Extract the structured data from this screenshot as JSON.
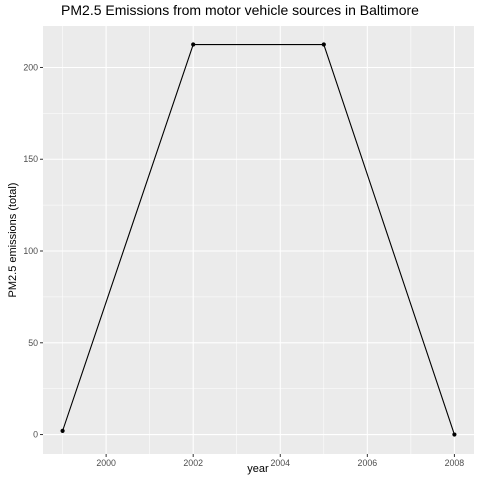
{
  "chart_data": {
    "type": "line",
    "title": "PM2.5 Emissions from motor vehicle sources in Baltimore",
    "xlabel": "year",
    "ylabel": "PM2.5 emissions (total)",
    "x": [
      1999,
      2002,
      2005,
      2008
    ],
    "series": [
      {
        "name": "total",
        "values": [
          2,
          212.5,
          212.5,
          0
        ],
        "color": "#000000"
      }
    ],
    "xlim": [
      1998.55,
      2008.45
    ],
    "ylim": [
      -10.6,
      222.6
    ],
    "xticks": [
      2000,
      2002,
      2004,
      2006,
      2008
    ],
    "xtick_labels": [
      "2000",
      "2002",
      "2004",
      "2006",
      "2008"
    ],
    "xminor": [
      1999,
      2001,
      2003,
      2005,
      2007
    ],
    "yticks": [
      0,
      50,
      100,
      150,
      200
    ],
    "ytick_labels": [
      "0",
      "50",
      "100",
      "150",
      "200"
    ],
    "yminor": [
      25,
      75,
      125,
      175
    ],
    "panel_color": "#ebebeb",
    "grid": true
  }
}
